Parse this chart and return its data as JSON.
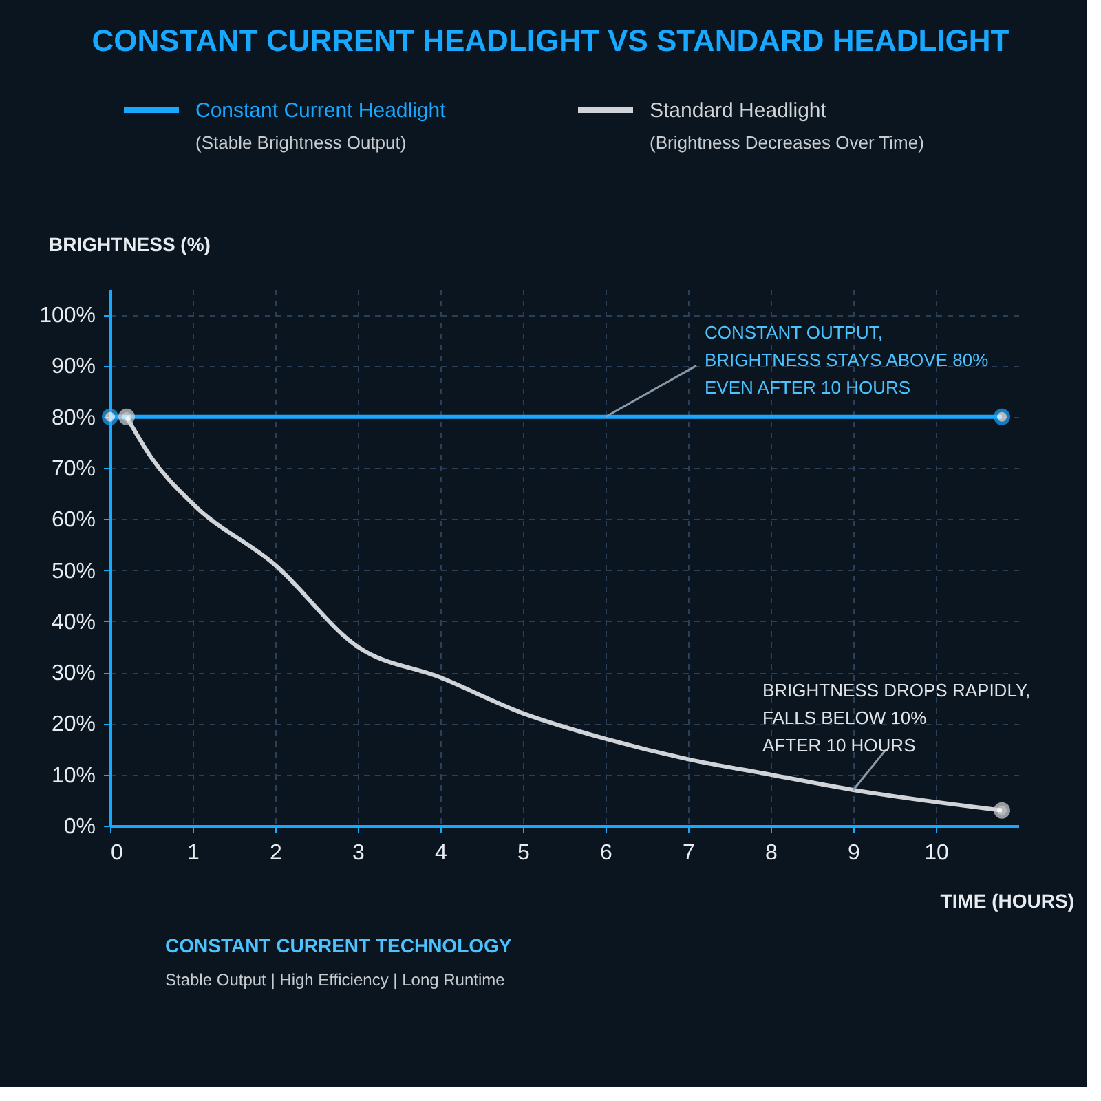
{
  "chart_data": {
    "type": "line",
    "title": "CONSTANT CURRENT HEADLIGHT VS STANDARD HEADLIGHT",
    "xlabel": "TIME (HOURS)",
    "ylabel": "BRIGHTNESS (%)",
    "series": [
      {
        "name": "Constant Current Headlight",
        "color": "#19a8ff",
        "x": [
          0,
          10.8
        ],
        "values": [
          80,
          80
        ],
        "marker": "circle"
      },
      {
        "name": "Standard Headlight",
        "color": "#d0d4d8",
        "x": [
          0.2,
          0.5,
          1,
          2,
          3,
          4,
          5,
          6,
          7,
          8,
          9,
          10.8
        ],
        "values": [
          80,
          72,
          63,
          51,
          35,
          29,
          22,
          17,
          13,
          10,
          7,
          3
        ],
        "marker": "none"
      },
      {
        "type": "scatter",
        "color": "#d0d4d8",
        "x": [
          0.2,
          10.8
        ],
        "values": [
          80,
          3
        ],
        "marker": "circle"
      }
    ],
    "xlim": [
      0,
      11
    ],
    "xticks": [
      0,
      1,
      2,
      3,
      4,
      5,
      6,
      7,
      8,
      9,
      10
    ],
    "ylim": [
      0,
      105
    ],
    "yticks": [
      {
        "value": 0,
        "label": "0%"
      },
      {
        "value": 10,
        "label": "10%"
      },
      {
        "value": 20,
        "label": "20%"
      },
      {
        "value": 30,
        "label": "30%"
      },
      {
        "value": 40,
        "label": "40%"
      },
      {
        "value": 50,
        "label": "50%"
      },
      {
        "value": 60,
        "label": "60%"
      },
      {
        "value": 70,
        "label": "70%"
      },
      {
        "value": 80,
        "label": "80%"
      },
      {
        "value": 90,
        "label": "90%"
      },
      {
        "value": 100,
        "label": "100%"
      }
    ],
    "grid": true,
    "legend": "top",
    "annotations": [
      {
        "text": "CONSTANT OUTPUT,\nBRIGHTNESS STAYS ABOVE 80%\nEVEN AFTER 10 HOURS",
        "x": 6,
        "y": 80
      },
      {
        "text": "BRIGHTNESS DROPS RAPIDLY,\nFALLS BELOW 10%\nAFTER 10 HOURS",
        "x": 9,
        "y": 7
      },
      "(Stable Brightness Output)",
      "(Brightness Decreases Over Time)",
      "CONSTANT CURRENT TECHNOLOGY",
      "Stable Output | High Efficiency | Long Runtime"
    ]
  }
}
